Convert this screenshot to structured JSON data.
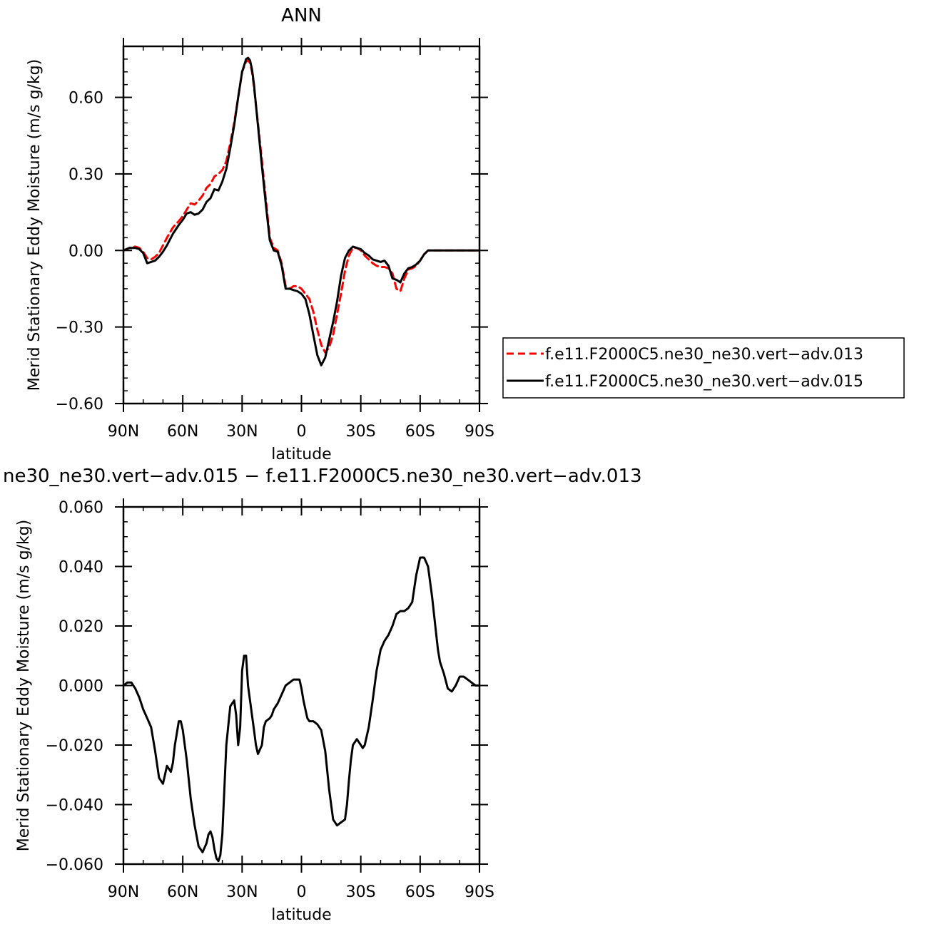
{
  "chart_data": [
    {
      "type": "line",
      "title": "ANN",
      "xlabel": "latitude",
      "ylabel": "Merid Stationary Eddy Moisture (m/s g/kg)",
      "xlim": [
        90,
        -90
      ],
      "ylim": [
        -0.6,
        0.8
      ],
      "x_ticks": [
        90,
        60,
        30,
        0,
        -30,
        -60,
        -90
      ],
      "x_tick_labels": [
        "90N",
        "60N",
        "30N",
        "0",
        "30S",
        "60S",
        "90S"
      ],
      "y_ticks": [
        -0.6,
        -0.3,
        0.0,
        0.3,
        0.6
      ],
      "y_tick_labels": [
        "−0.60",
        "−0.30",
        "0.00",
        "0.30",
        "0.60"
      ],
      "legend_position": "right",
      "series": [
        {
          "name": "f.e11.F2000C5.ne30_ne30.vert−adv.013",
          "color": "#ff0000",
          "dash": "dashed",
          "x": [
            90,
            87,
            84,
            82,
            80,
            78,
            76,
            74,
            72,
            70,
            68,
            65,
            62,
            60,
            58,
            56,
            54,
            52,
            50,
            48,
            46,
            44,
            42,
            40,
            38,
            36,
            34,
            32,
            30,
            28,
            27,
            26,
            25,
            24,
            23,
            22,
            20,
            18,
            16,
            14,
            12,
            10,
            8,
            6,
            4,
            2,
            0,
            -2,
            -4,
            -6,
            -8,
            -10,
            -12,
            -14,
            -16,
            -18,
            -20,
            -22,
            -24,
            -26,
            -28,
            -30,
            -32,
            -34,
            -36,
            -38,
            -40,
            -42,
            -44,
            -46,
            -48,
            -50,
            -52,
            -54,
            -56,
            -58,
            -60,
            -62,
            -64,
            -66,
            -68,
            -70,
            -72,
            -74,
            -76,
            -78,
            -80,
            -82,
            -84,
            -86,
            -88,
            -90
          ],
          "y": [
            0.0,
            0.01,
            0.015,
            0.01,
            -0.005,
            -0.03,
            -0.035,
            -0.025,
            -0.01,
            0.02,
            0.05,
            0.09,
            0.115,
            0.135,
            0.16,
            0.185,
            0.18,
            0.195,
            0.215,
            0.245,
            0.26,
            0.29,
            0.3,
            0.315,
            0.35,
            0.42,
            0.5,
            0.6,
            0.7,
            0.74,
            0.745,
            0.735,
            0.7,
            0.64,
            0.57,
            0.5,
            0.35,
            0.2,
            0.05,
            0.01,
            0.0,
            -0.05,
            -0.14,
            -0.15,
            -0.14,
            -0.14,
            -0.15,
            -0.17,
            -0.19,
            -0.24,
            -0.31,
            -0.37,
            -0.4,
            -0.38,
            -0.33,
            -0.25,
            -0.17,
            -0.08,
            -0.02,
            0.01,
            0.01,
            0.0,
            -0.02,
            -0.035,
            -0.05,
            -0.06,
            -0.065,
            -0.065,
            -0.07,
            -0.09,
            -0.15,
            -0.16,
            -0.11,
            -0.075,
            -0.07,
            -0.06,
            -0.04,
            -0.015,
            0.0,
            0.0,
            0.0,
            0.0,
            0.0,
            0.0,
            0.0,
            0.0,
            0.0,
            0.0,
            0.0,
            0.0,
            0.0,
            0.0
          ]
        },
        {
          "name": "f.e11.F2000C5.ne30_ne30.vert−adv.015",
          "color": "#000000",
          "dash": "solid",
          "x": [
            90,
            87,
            84,
            82,
            80,
            78,
            76,
            74,
            72,
            70,
            68,
            65,
            62,
            60,
            58,
            56,
            54,
            52,
            50,
            48,
            46,
            44,
            42,
            40,
            38,
            36,
            34,
            32,
            30,
            28,
            27,
            26,
            25,
            24,
            23,
            22,
            20,
            18,
            16,
            14,
            12,
            10,
            8,
            6,
            4,
            2,
            0,
            -2,
            -4,
            -6,
            -8,
            -10,
            -12,
            -14,
            -16,
            -18,
            -20,
            -22,
            -24,
            -26,
            -28,
            -30,
            -32,
            -34,
            -36,
            -38,
            -40,
            -42,
            -44,
            -46,
            -48,
            -50,
            -52,
            -54,
            -56,
            -58,
            -60,
            -62,
            -64,
            -66,
            -68,
            -70,
            -72,
            -74,
            -76,
            -78,
            -80,
            -82,
            -84,
            -86,
            -88,
            -90
          ],
          "y": [
            0.0,
            0.01,
            0.01,
            0.005,
            -0.01,
            -0.05,
            -0.045,
            -0.04,
            -0.025,
            -0.005,
            0.02,
            0.065,
            0.1,
            0.12,
            0.145,
            0.15,
            0.14,
            0.145,
            0.16,
            0.19,
            0.205,
            0.24,
            0.235,
            0.27,
            0.32,
            0.4,
            0.49,
            0.6,
            0.7,
            0.75,
            0.755,
            0.745,
            0.71,
            0.65,
            0.57,
            0.49,
            0.33,
            0.18,
            0.04,
            0.0,
            -0.005,
            -0.06,
            -0.15,
            -0.15,
            -0.155,
            -0.16,
            -0.17,
            -0.19,
            -0.25,
            -0.33,
            -0.41,
            -0.45,
            -0.42,
            -0.35,
            -0.28,
            -0.2,
            -0.1,
            -0.03,
            0.0,
            0.015,
            0.01,
            0.005,
            -0.01,
            -0.02,
            -0.035,
            -0.04,
            -0.045,
            -0.04,
            -0.06,
            -0.11,
            -0.115,
            -0.125,
            -0.09,
            -0.07,
            -0.065,
            -0.055,
            -0.04,
            -0.015,
            0.0,
            0.0,
            0.0,
            0.0,
            0.0,
            0.0,
            0.0,
            0.0,
            0.0,
            0.0,
            0.0,
            0.0,
            0.0,
            0.0
          ]
        }
      ]
    },
    {
      "type": "line",
      "title": "ne30_ne30.vert−adv.015 − f.e11.F2000C5.ne30_ne30.vert−adv.013",
      "xlabel": "latitude",
      "ylabel": "Merid Stationary Eddy Moisture (m/s g/kg)",
      "xlim": [
        90,
        -90
      ],
      "ylim": [
        -0.06,
        0.06
      ],
      "x_ticks": [
        90,
        60,
        30,
        0,
        -30,
        -60,
        -90
      ],
      "x_tick_labels": [
        "90N",
        "60N",
        "30N",
        "0",
        "30S",
        "60S",
        "90S"
      ],
      "y_ticks": [
        -0.06,
        -0.04,
        -0.02,
        0.0,
        0.02,
        0.04,
        0.06
      ],
      "y_tick_labels": [
        "−0.060",
        "−0.040",
        "−0.020",
        "0.000",
        "0.020",
        "0.040",
        "0.060"
      ],
      "series": [
        {
          "color": "#000000",
          "dash": "solid",
          "x": [
            90,
            88,
            86,
            84,
            82,
            80,
            78,
            76,
            74,
            72,
            70,
            69,
            68,
            67,
            66,
            65,
            64,
            62,
            61,
            60,
            58,
            56,
            54,
            52,
            50,
            48,
            47,
            46,
            45,
            44,
            43,
            42,
            41,
            40,
            39,
            38,
            36,
            34,
            33,
            32,
            31,
            30,
            29,
            28,
            27,
            26,
            25,
            24,
            23,
            22,
            20,
            19,
            18,
            16,
            15,
            14,
            12,
            10,
            8,
            6,
            4,
            2,
            1,
            0,
            -1,
            -2,
            -3,
            -4,
            -6,
            -8,
            -10,
            -12,
            -14,
            -16,
            -18,
            -20,
            -22,
            -23,
            -24,
            -25,
            -26,
            -28,
            -30,
            -31,
            -32,
            -34,
            -36,
            -38,
            -40,
            -42,
            -44,
            -46,
            -48,
            -50,
            -52,
            -54,
            -56,
            -58,
            -60,
            -62,
            -64,
            -66,
            -68,
            -69,
            -70,
            -72,
            -74,
            -76,
            -78,
            -80,
            -82,
            -84,
            -86,
            -88,
            -90
          ],
          "y": [
            0.0,
            0.001,
            0.001,
            -0.001,
            -0.004,
            -0.008,
            -0.011,
            -0.014,
            -0.022,
            -0.031,
            -0.033,
            -0.03,
            -0.027,
            -0.028,
            -0.029,
            -0.026,
            -0.02,
            -0.012,
            -0.012,
            -0.015,
            -0.025,
            -0.038,
            -0.047,
            -0.054,
            -0.056,
            -0.053,
            -0.05,
            -0.049,
            -0.051,
            -0.055,
            -0.058,
            -0.059,
            -0.057,
            -0.05,
            -0.035,
            -0.02,
            -0.007,
            -0.005,
            -0.01,
            -0.02,
            -0.014,
            0.005,
            0.01,
            0.01,
            0.0,
            -0.005,
            -0.01,
            -0.015,
            -0.02,
            -0.023,
            -0.02,
            -0.014,
            -0.012,
            -0.011,
            -0.01,
            -0.008,
            -0.006,
            -0.003,
            0.0,
            0.001,
            0.002,
            0.002,
            0.002,
            -0.001,
            -0.005,
            -0.008,
            -0.011,
            -0.012,
            -0.012,
            -0.013,
            -0.015,
            -0.022,
            -0.035,
            -0.045,
            -0.047,
            -0.046,
            -0.045,
            -0.04,
            -0.032,
            -0.025,
            -0.02,
            -0.018,
            -0.02,
            -0.021,
            -0.02,
            -0.014,
            -0.005,
            0.005,
            0.012,
            0.015,
            0.017,
            0.02,
            0.024,
            0.025,
            0.025,
            0.026,
            0.028,
            0.037,
            0.043,
            0.043,
            0.04,
            0.03,
            0.018,
            0.012,
            0.008,
            0.004,
            -0.001,
            -0.002,
            0.0,
            0.003,
            0.003,
            0.002,
            0.001,
            0.0,
            0.0
          ]
        }
      ]
    }
  ]
}
